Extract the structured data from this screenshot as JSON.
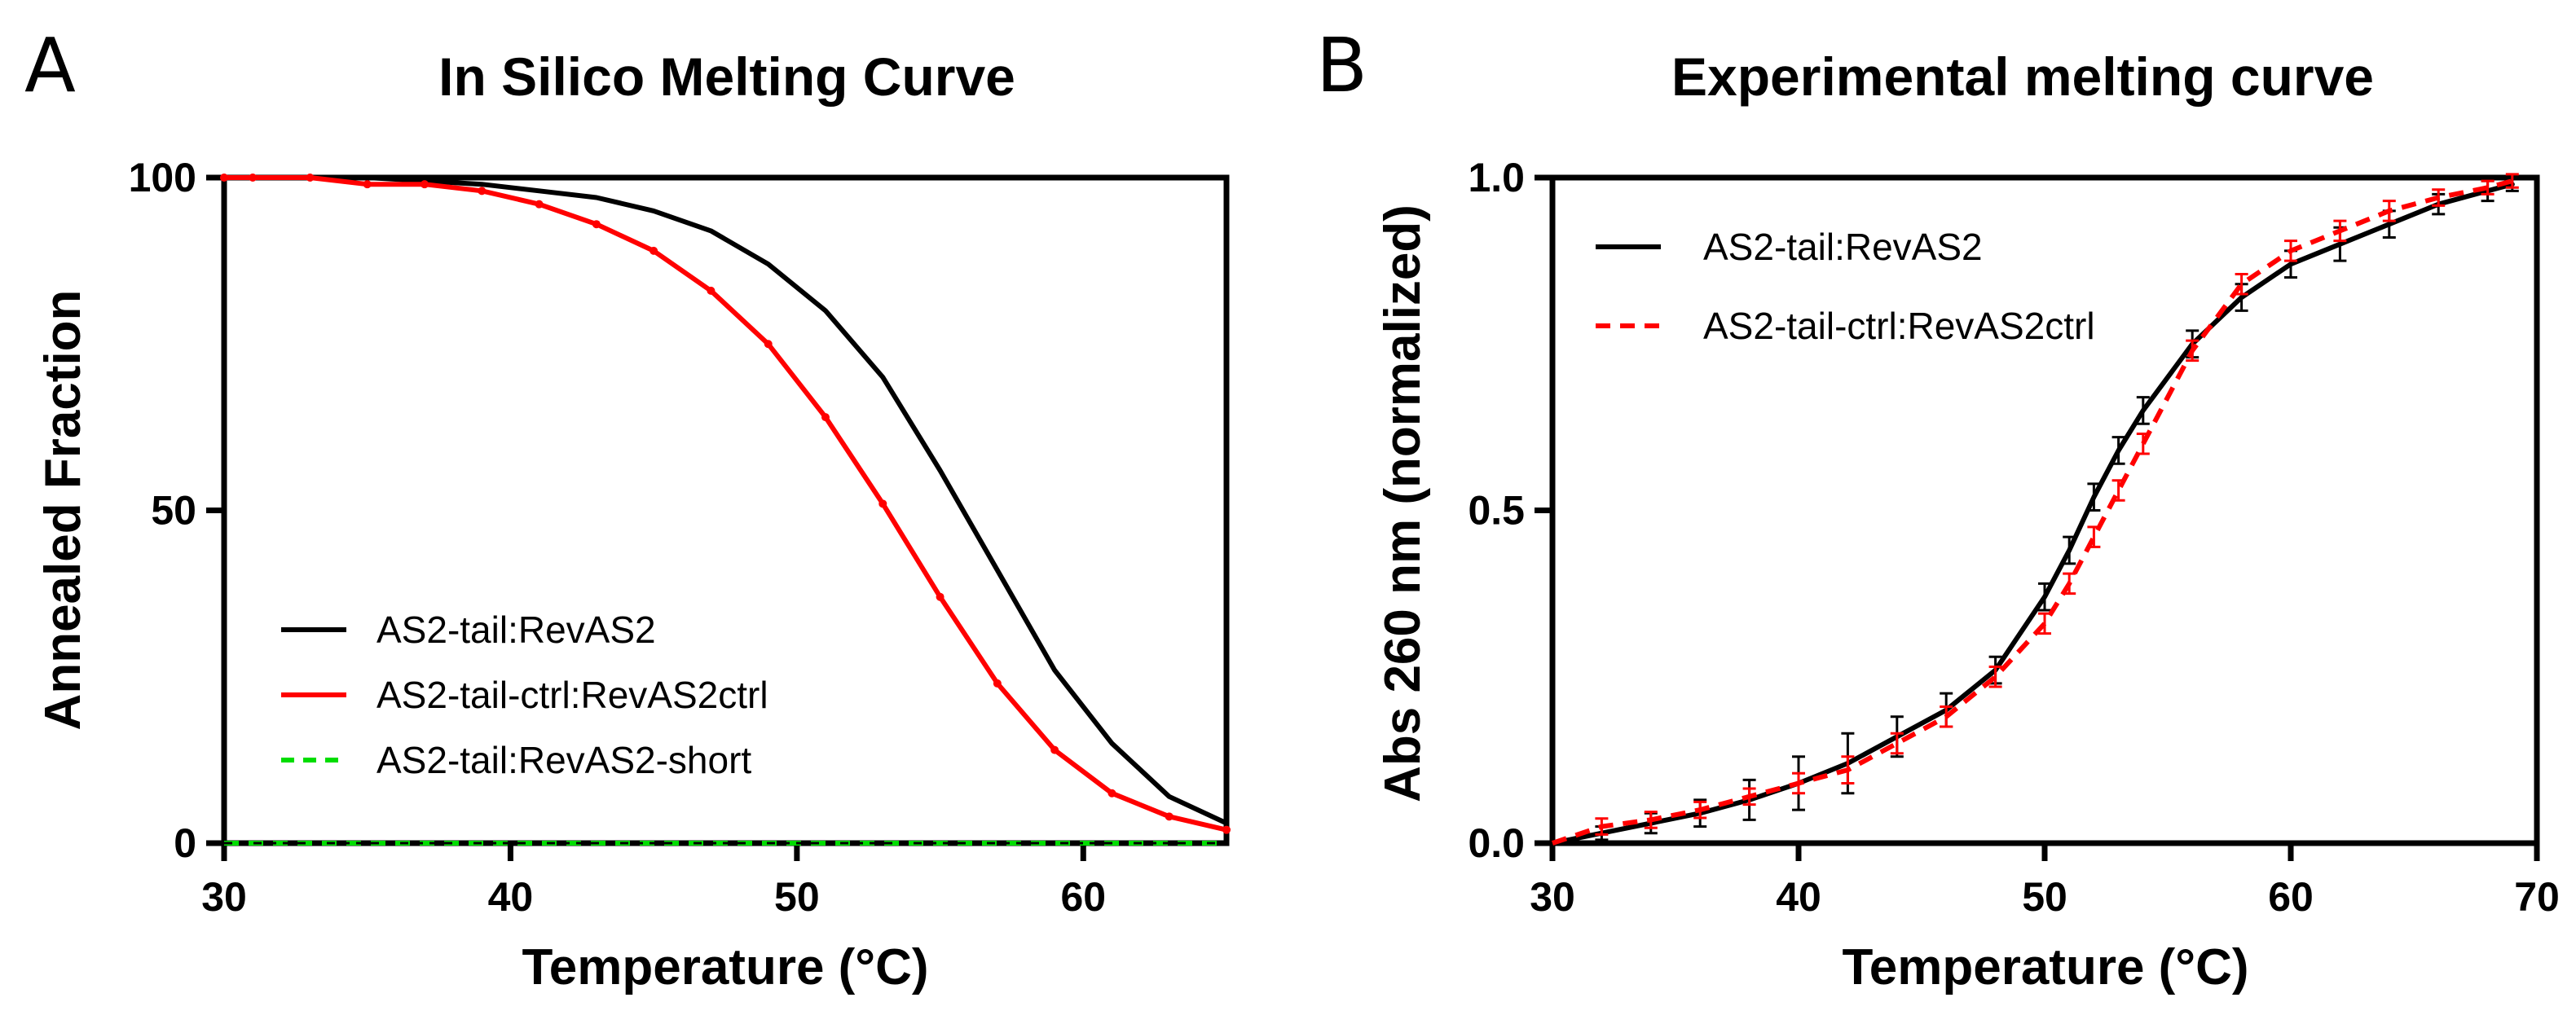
{
  "chart_data": [
    {
      "id": "A",
      "type": "line",
      "panel_letter": "A",
      "title": "In Silico Melting Curve",
      "xlabel": "Temperature (°C)",
      "ylabel": "Annealed Fraction",
      "xlim": [
        30,
        65
      ],
      "ylim": [
        0,
        100
      ],
      "xticks": [
        30,
        40,
        50,
        60
      ],
      "yticks": [
        0,
        50,
        100
      ],
      "grid": false,
      "legend_position": "lower-left",
      "series": [
        {
          "name": "AS2-tail:RevAS2",
          "color": "#000000",
          "dash": "solid",
          "x": [
            30,
            33,
            35,
            37,
            39,
            41,
            43,
            45,
            47,
            49,
            51,
            53,
            55,
            57,
            59,
            61,
            63,
            65
          ],
          "y": [
            100,
            100,
            100,
            99.5,
            99,
            98,
            97,
            95,
            92,
            87,
            80,
            70,
            56,
            41,
            26,
            15,
            7,
            3
          ]
        },
        {
          "name": "AS2-tail-ctrl:RevAS2ctrl",
          "color": "#ff0000",
          "dash": "solid",
          "markers": true,
          "x": [
            30,
            31,
            33,
            35,
            37,
            39,
            41,
            43,
            45,
            47,
            49,
            51,
            53,
            55,
            57,
            59,
            61,
            63,
            65
          ],
          "y": [
            100,
            100,
            100,
            99,
            99,
            98,
            96,
            93,
            89,
            83,
            75,
            64,
            51,
            37,
            24,
            14,
            7.5,
            4,
            2
          ]
        },
        {
          "name": "AS2-tail:RevAS2-short",
          "color": "#00dd00",
          "dash": "dashed",
          "x": [
            30,
            65
          ],
          "y": [
            0,
            0
          ]
        }
      ]
    },
    {
      "id": "B",
      "type": "line",
      "panel_letter": "B",
      "title": "Experimental melting curve",
      "xlabel": "Temperature (°C)",
      "ylabel": "Abs 260 nm (normalized)",
      "xlim": [
        30,
        70
      ],
      "ylim": [
        0,
        1.0
      ],
      "xticks": [
        30,
        40,
        50,
        60,
        70
      ],
      "yticks": [
        0,
        0.5,
        1.0
      ],
      "ytick_labels": [
        "0.0",
        "0.5",
        "1.0"
      ],
      "grid": false,
      "legend_position": "top-left",
      "series": [
        {
          "name": "AS2-tail:RevAS2",
          "color": "#000000",
          "dash": "solid",
          "error_bars": true,
          "x": [
            30,
            32,
            34,
            36,
            38,
            40,
            42,
            44,
            46,
            48,
            50,
            51,
            52,
            53,
            54,
            56,
            58,
            60,
            62,
            64,
            66,
            68,
            69
          ],
          "y": [
            0,
            0.015,
            0.03,
            0.045,
            0.065,
            0.09,
            0.12,
            0.16,
            0.2,
            0.26,
            0.37,
            0.44,
            0.52,
            0.59,
            0.65,
            0.75,
            0.82,
            0.87,
            0.9,
            0.93,
            0.96,
            0.98,
            0.99
          ],
          "err": [
            0,
            0.01,
            0.015,
            0.02,
            0.03,
            0.04,
            0.045,
            0.03,
            0.025,
            0.02,
            0.02,
            0.02,
            0.02,
            0.02,
            0.02,
            0.02,
            0.02,
            0.02,
            0.025,
            0.02,
            0.015,
            0.015,
            0.01
          ]
        },
        {
          "name": "AS2-tail-ctrl:RevAS2ctrl",
          "color": "#ff0000",
          "dash": "dashed",
          "error_bars": true,
          "x": [
            30,
            32,
            34,
            36,
            38,
            40,
            42,
            44,
            46,
            48,
            50,
            51,
            52,
            53,
            54,
            56,
            58,
            60,
            62,
            64,
            66,
            68,
            69
          ],
          "y": [
            0,
            0.025,
            0.035,
            0.05,
            0.07,
            0.09,
            0.11,
            0.15,
            0.19,
            0.25,
            0.33,
            0.39,
            0.46,
            0.53,
            0.6,
            0.74,
            0.84,
            0.89,
            0.92,
            0.95,
            0.97,
            0.985,
            0.995
          ],
          "err": [
            0,
            0.012,
            0.012,
            0.012,
            0.012,
            0.015,
            0.02,
            0.015,
            0.015,
            0.015,
            0.015,
            0.015,
            0.015,
            0.015,
            0.015,
            0.015,
            0.015,
            0.015,
            0.015,
            0.015,
            0.012,
            0.01,
            0.01
          ]
        }
      ]
    }
  ]
}
